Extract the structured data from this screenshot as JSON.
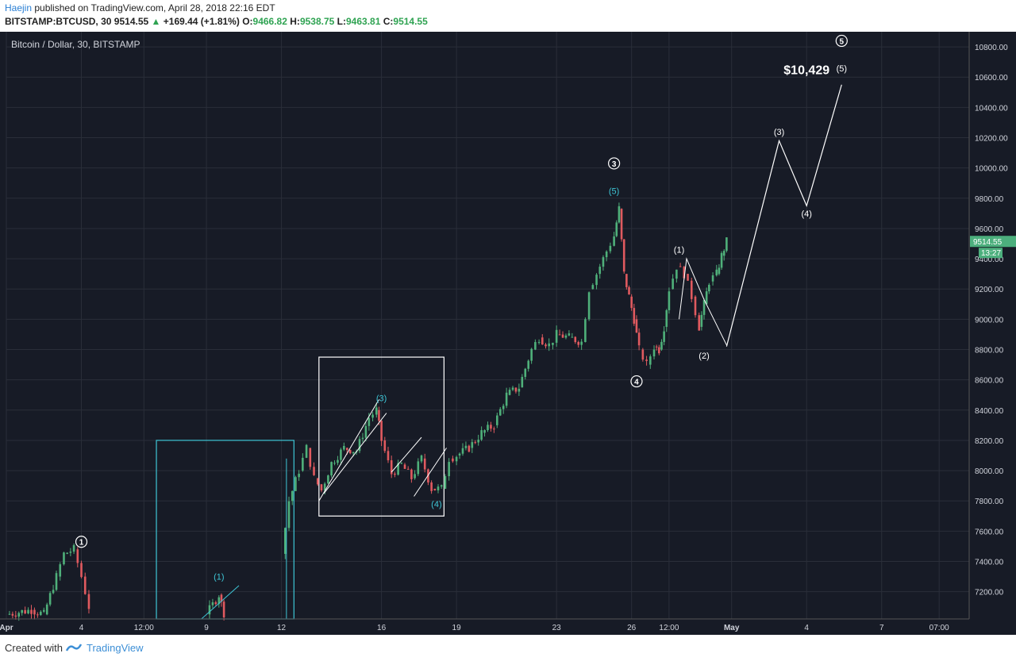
{
  "header": {
    "author": "Haejin",
    "published": " published on TradingView.com, April 28, 2018 22:16 EDT",
    "symbol": "BITSTAMP:BTCUSD, 30",
    "last": "9514.55",
    "change": "+169.44 (+1.81%)",
    "o_label": "O:",
    "o": "9466.82",
    "h_label": "H:",
    "h": "9538.75",
    "l_label": "L:",
    "l": "9463.81",
    "c_label": "C:",
    "c": "9514.55"
  },
  "footer": {
    "created": "Created with",
    "brand": "TradingView"
  },
  "colors": {
    "bg": "#171b26",
    "grid": "#2a2e39",
    "up": "#4fb07a",
    "down": "#e05a5f",
    "cyan": "#3ec6d6",
    "white": "#ffffff",
    "price_tag": "#4caf7d"
  },
  "chart_data": {
    "type": "candlestick",
    "title": "Bitcoin / Dollar, 30, BITSTAMP",
    "ylim": [
      7020,
      10900
    ],
    "y_ticks": [
      7200,
      7400,
      7600,
      7800,
      8000,
      8200,
      8400,
      8600,
      8800,
      9000,
      9200,
      9400,
      9600,
      9800,
      10000,
      10200,
      10400,
      10600,
      10800
    ],
    "x_ticks": [
      {
        "label": "Apr",
        "t": 0
      },
      {
        "label": "4",
        "t": 3
      },
      {
        "label": "12:00",
        "t": 5.5
      },
      {
        "label": "9",
        "t": 8
      },
      {
        "label": "12",
        "t": 11
      },
      {
        "label": "16",
        "t": 15
      },
      {
        "label": "19",
        "t": 18
      },
      {
        "label": "23",
        "t": 22
      },
      {
        "label": "26",
        "t": 25
      },
      {
        "label": "12:00",
        "t": 26.5
      },
      {
        "label": "May",
        "t": 29
      },
      {
        "label": "4",
        "t": 32
      },
      {
        "label": "7",
        "t": 35
      },
      {
        "label": "07:00",
        "t": 37.3
      }
    ],
    "price_path": [
      [
        0,
        7050
      ],
      [
        1,
        7080
      ],
      [
        1.5,
        7050
      ],
      [
        2,
        7300
      ],
      [
        2.3,
        7450
      ],
      [
        2.7,
        7480
      ],
      [
        3,
        7300
      ],
      [
        3.3,
        7100
      ],
      [
        8,
        7050
      ],
      [
        8.5,
        7180
      ],
      [
        8.7,
        7060
      ],
      [
        11,
        7450
      ],
      [
        11.3,
        7800
      ],
      [
        11.7,
        8000
      ],
      [
        12,
        8150
      ],
      [
        12.3,
        7950
      ],
      [
        12.6,
        7870
      ],
      [
        13,
        8050
      ],
      [
        13.5,
        8150
      ],
      [
        14,
        8130
      ],
      [
        14.5,
        8350
      ],
      [
        14.8,
        8400
      ],
      [
        15,
        8200
      ],
      [
        15.4,
        7980
      ],
      [
        15.8,
        8040
      ],
      [
        16.2,
        7950
      ],
      [
        16.6,
        8080
      ],
      [
        17,
        7880
      ],
      [
        17.4,
        7880
      ],
      [
        17.7,
        8080
      ],
      [
        18,
        8100
      ],
      [
        18.5,
        8150
      ],
      [
        19,
        8250
      ],
      [
        19.5,
        8300
      ],
      [
        20,
        8500
      ],
      [
        20.5,
        8550
      ],
      [
        21,
        8800
      ],
      [
        21.3,
        8880
      ],
      [
        21.7,
        8830
      ],
      [
        22,
        8900
      ],
      [
        22.5,
        8880
      ],
      [
        23,
        8850
      ],
      [
        23.3,
        9200
      ],
      [
        23.6,
        9300
      ],
      [
        24,
        9450
      ],
      [
        24.3,
        9550
      ],
      [
        24.5,
        9730
      ],
      [
        24.7,
        9300
      ],
      [
        24.9,
        9150
      ],
      [
        25.1,
        9000
      ],
      [
        25.3,
        8800
      ],
      [
        25.6,
        8700
      ],
      [
        25.9,
        8820
      ],
      [
        26.1,
        8800
      ],
      [
        26.3,
        8950
      ],
      [
        26.5,
        9200
      ],
      [
        26.8,
        9350
      ],
      [
        27.1,
        9300
      ],
      [
        27.4,
        9150
      ],
      [
        27.7,
        8950
      ],
      [
        27.9,
        9100
      ],
      [
        28.1,
        9250
      ],
      [
        28.4,
        9300
      ],
      [
        28.6,
        9420
      ],
      [
        28.8,
        9514.55
      ]
    ],
    "last_price": {
      "label": "9514.55",
      "value": 9514.55,
      "countdown": "13:27"
    },
    "projection": [
      [
        28.8,
        8820
      ],
      [
        30.9,
        10180
      ],
      [
        32.0,
        9750
      ],
      [
        33.4,
        10550
      ]
    ],
    "projection_upper": [
      [
        26.9,
        9000
      ],
      [
        27.2,
        9400
      ],
      [
        27.9,
        9130
      ],
      [
        28.8,
        8830
      ]
    ],
    "labels": [
      {
        "text": "1",
        "t": 3.0,
        "y": 7530,
        "style": "circle",
        "color": "white"
      },
      {
        "text": "(1)",
        "t": 8.5,
        "y": 7300,
        "style": "paren",
        "color": "cyan"
      },
      {
        "text": "(3)",
        "t": 15.0,
        "y": 8480,
        "style": "paren",
        "color": "cyan"
      },
      {
        "text": "(4)",
        "t": 17.2,
        "y": 7780,
        "style": "paren",
        "color": "cyan"
      },
      {
        "text": "3",
        "t": 24.3,
        "y": 10030,
        "style": "circle",
        "color": "white"
      },
      {
        "text": "(5)",
        "t": 24.3,
        "y": 9850,
        "style": "paren",
        "color": "cyan"
      },
      {
        "text": "4",
        "t": 25.2,
        "y": 8590,
        "style": "circle",
        "color": "white"
      },
      {
        "text": "(1)",
        "t": 26.9,
        "y": 9460,
        "style": "paren",
        "color": "white"
      },
      {
        "text": "(2)",
        "t": 27.9,
        "y": 8760,
        "style": "paren",
        "color": "white"
      },
      {
        "text": "(3)",
        "t": 30.9,
        "y": 10240,
        "style": "paren",
        "color": "white"
      },
      {
        "text": "(4)",
        "t": 32.0,
        "y": 9700,
        "style": "paren",
        "color": "white"
      },
      {
        "text": "5",
        "t": 33.4,
        "y": 10840,
        "style": "circle",
        "color": "white"
      },
      {
        "text": "(5)",
        "t": 33.4,
        "y": 10660,
        "style": "paren",
        "color": "white"
      }
    ],
    "annotation": {
      "text": "$10,429",
      "t": 32.0,
      "y": 10620
    },
    "boxes": [
      {
        "t0": 6.0,
        "t1": 11.5,
        "y0": 7020,
        "y1": 8200,
        "color": "cyan"
      },
      {
        "t0": 12.5,
        "t1": 17.5,
        "y0": 7700,
        "y1": 8750,
        "color": "white"
      }
    ]
  }
}
